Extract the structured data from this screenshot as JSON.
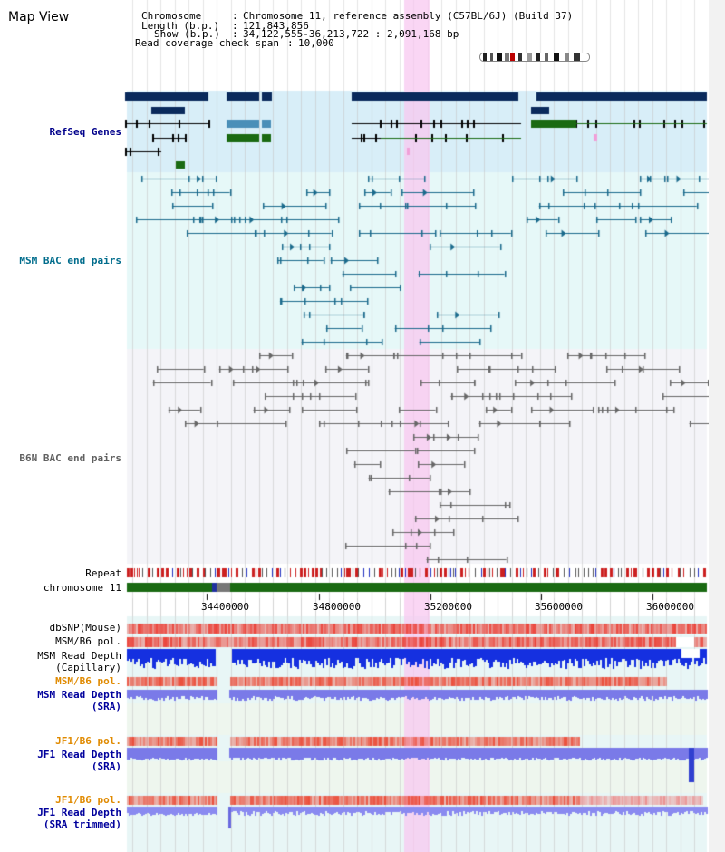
{
  "view_title": "Map View",
  "info": {
    "chromosome_label": "Chromosome",
    "chromosome_value": "Chromosome 11, reference assembly (C57BL/6J) (Build 37)",
    "length_label": "Length (b.p.)",
    "length_value": "121,843,856",
    "show_label": "Show (b.p.)",
    "show_value": "34,122,555-36,213,722 : 2,091,168 bp",
    "coverage_label": "Read coverage check span",
    "coverage_value": "10,000"
  },
  "tracks": {
    "refseq": "RefSeq Genes",
    "msm_bac": "MSM BAC end pairs",
    "b6n_bac": "B6N BAC end pairs",
    "repeat": "Repeat",
    "chromosome": "chromosome 11",
    "dbsnp": "dbSNP(Mouse)",
    "msm_b6_pol": "MSM/B6 pol.",
    "msm_depth_cap_1": "MSM Read Depth",
    "msm_depth_cap_2": "(Capillary)",
    "msm_b6_pol2": "MSM/B6 pol.",
    "msm_depth_sra_1": "MSM Read Depth",
    "msm_depth_sra_2": "(SRA)",
    "jf1_b6_pol": "JF1/B6 pol.",
    "jf1_depth_1": "JF1 Read Depth",
    "jf1_depth_2": "(SRA)",
    "jf1_b6_pol2": "JF1/B6 pol.",
    "jf1_trim_1": "JF1 Read Depth",
    "jf1_trim_2": "(SRA trimmed)"
  },
  "axis_ticks": [
    "34400000",
    "34800000",
    "35200000",
    "35600000",
    "36000000"
  ],
  "colors": {
    "refseq_label": "#00008b",
    "msm_label": "#006c8c",
    "b6n_label": "#606060",
    "pol_orange": "#e08a00",
    "depth_blue": "#00009c",
    "gene_dark": "#0a2a5c",
    "gene_green": "#1a6a12",
    "highlight": "#f8d8f4"
  }
}
